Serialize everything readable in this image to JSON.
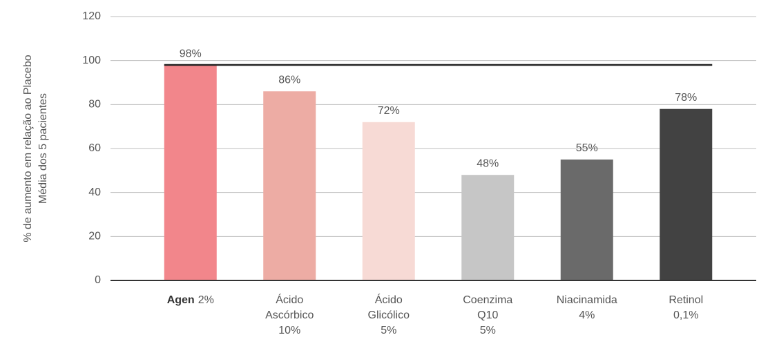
{
  "chart_data": {
    "type": "bar",
    "ylabel": [
      "% de aumento em relação ao Placebo",
      "Média dos 5 pacientes"
    ],
    "categories": [
      [
        [
          "Agen",
          "2%"
        ]
      ],
      [
        "Ácido",
        "Ascórbico",
        "10%"
      ],
      [
        "Ácido",
        "Glicólico",
        "5%"
      ],
      [
        "Coenzima",
        "Q10",
        "5%"
      ],
      [
        "Niacinamida",
        "4%"
      ],
      [
        "Retinol",
        "0,1%"
      ]
    ],
    "values": [
      98,
      86,
      72,
      48,
      55,
      78
    ],
    "value_labels": [
      "98%",
      "86%",
      "72%",
      "48%",
      "55%",
      "78%"
    ],
    "colors": [
      "#f2868b",
      "#edaca4",
      "#f7dad5",
      "#c6c6c6",
      "#6a6a6a",
      "#424242"
    ],
    "reference_line": 98,
    "ylim": [
      0,
      120
    ],
    "yticks": [
      0,
      20,
      40,
      60,
      80,
      100,
      120
    ],
    "grid": true
  }
}
